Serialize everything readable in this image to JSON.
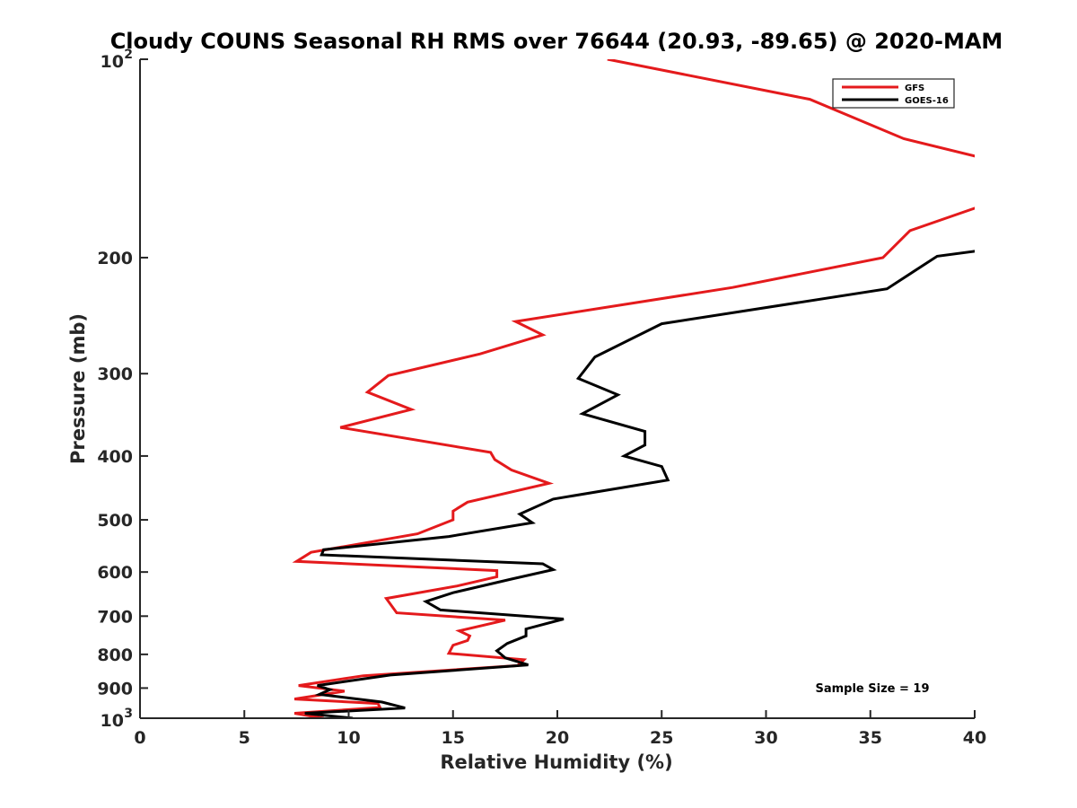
{
  "chart_data": {
    "type": "line",
    "title": "Cloudy COUNS Seasonal RH RMS over 76644 (20.93, -89.65) @ 2020-MAM",
    "xlabel": "Relative Humidity (%)",
    "ylabel": "Pressure (mb)",
    "xlim": [
      0,
      40
    ],
    "ylim": [
      100,
      1000
    ],
    "yscale": "log",
    "yreverse": true,
    "xticks": [
      0,
      5,
      10,
      15,
      20,
      25,
      30,
      35,
      40
    ],
    "xtick_labels": [
      "0",
      "5",
      "10",
      "15",
      "20",
      "25",
      "30",
      "35",
      "40"
    ],
    "yticks": [
      {
        "value": 100,
        "base": "10",
        "exp": "2"
      },
      {
        "value": 200,
        "label": "200"
      },
      {
        "value": 300,
        "label": "300"
      },
      {
        "value": 400,
        "label": "400"
      },
      {
        "value": 500,
        "label": "500"
      },
      {
        "value": 600,
        "label": "600"
      },
      {
        "value": 700,
        "label": "700"
      },
      {
        "value": 800,
        "label": "800"
      },
      {
        "value": 900,
        "label": "900"
      },
      {
        "value": 1000,
        "base": "10",
        "exp": "3"
      }
    ],
    "legend_position": "top-right",
    "annotation": "Sample Size = 19",
    "series": [
      {
        "name": "GFS",
        "color": "#e41a1c",
        "points": [
          [
            22.4,
            100
          ],
          [
            32.1,
            115
          ],
          [
            36.6,
            132
          ],
          [
            40.3,
            141
          ],
          [
            40.3,
            167
          ],
          [
            36.9,
            182
          ],
          [
            35.6,
            200
          ],
          [
            28.4,
            222
          ],
          [
            18.0,
            250
          ],
          [
            19.3,
            262
          ],
          [
            16.3,
            280
          ],
          [
            11.9,
            302
          ],
          [
            10.9,
            320
          ],
          [
            13.0,
            340
          ],
          [
            9.6,
            362
          ],
          [
            16.8,
            395
          ],
          [
            17.0,
            405
          ],
          [
            17.8,
            420
          ],
          [
            19.6,
            440
          ],
          [
            15.7,
            470
          ],
          [
            15.0,
            485
          ],
          [
            15.0,
            500
          ],
          [
            13.3,
            525
          ],
          [
            8.2,
            560
          ],
          [
            7.5,
            578
          ],
          [
            17.1,
            597
          ],
          [
            17.1,
            610
          ],
          [
            15.2,
            630
          ],
          [
            11.8,
            658
          ],
          [
            12.3,
            692
          ],
          [
            17.5,
            710
          ],
          [
            15.3,
            737
          ],
          [
            15.8,
            750
          ],
          [
            15.7,
            762
          ],
          [
            15.0,
            775
          ],
          [
            14.8,
            797
          ],
          [
            18.4,
            815
          ],
          [
            18.1,
            832
          ],
          [
            10.7,
            862
          ],
          [
            7.6,
            892
          ],
          [
            9.8,
            910
          ],
          [
            7.4,
            935
          ],
          [
            11.4,
            950
          ],
          [
            11.5,
            963
          ],
          [
            7.4,
            983
          ],
          [
            8.8,
            1000
          ]
        ]
      },
      {
        "name": "GOES-16",
        "color": "#000000",
        "points": [
          [
            40.3,
            195
          ],
          [
            38.2,
            199
          ],
          [
            35.8,
            223
          ],
          [
            25.0,
            252
          ],
          [
            21.8,
            283
          ],
          [
            21.0,
            305
          ],
          [
            22.9,
            323
          ],
          [
            21.2,
            345
          ],
          [
            24.2,
            367
          ],
          [
            24.2,
            385
          ],
          [
            23.2,
            400
          ],
          [
            25.0,
            415
          ],
          [
            25.3,
            435
          ],
          [
            19.8,
            465
          ],
          [
            18.2,
            490
          ],
          [
            18.8,
            505
          ],
          [
            14.8,
            530
          ],
          [
            8.8,
            555
          ],
          [
            8.7,
            565
          ],
          [
            19.3,
            583
          ],
          [
            19.8,
            595
          ],
          [
            17.8,
            615
          ],
          [
            15.0,
            645
          ],
          [
            13.7,
            665
          ],
          [
            14.4,
            685
          ],
          [
            20.3,
            707
          ],
          [
            18.5,
            732
          ],
          [
            18.5,
            750
          ],
          [
            17.6,
            770
          ],
          [
            17.1,
            790
          ],
          [
            17.5,
            810
          ],
          [
            18.6,
            830
          ],
          [
            12.0,
            860
          ],
          [
            8.5,
            892
          ],
          [
            9.1,
            905
          ],
          [
            8.6,
            920
          ],
          [
            11.6,
            945
          ],
          [
            12.7,
            965
          ],
          [
            7.9,
            983
          ],
          [
            10.2,
            1000
          ]
        ]
      }
    ]
  }
}
